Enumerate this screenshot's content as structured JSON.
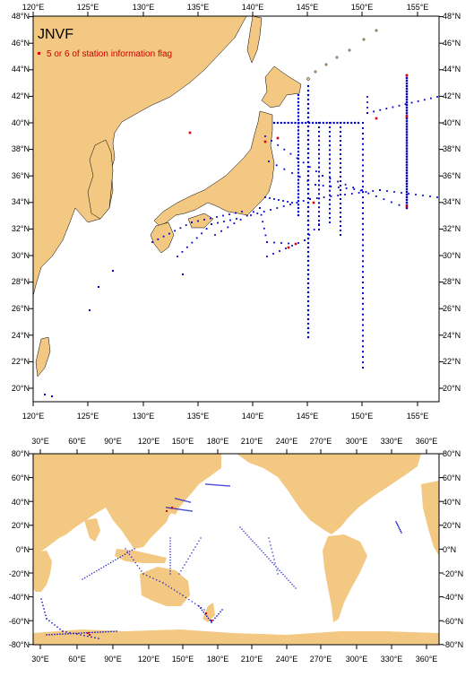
{
  "colors": {
    "land": "#f2c882",
    "ocean": "#ffffff",
    "blue_dots": "#0000cc",
    "red_dots": "#dd0000",
    "frame": "#000000"
  },
  "top_map": {
    "title": "JNVF",
    "legend_label": "5 or 6 of station information flag",
    "lon_labels": [
      "120°E",
      "125°E",
      "130°E",
      "135°E",
      "140°E",
      "145°E",
      "150°E",
      "155°E"
    ],
    "lat_labels": [
      "20°N",
      "22°N",
      "24°N",
      "26°N",
      "28°N",
      "30°N",
      "32°N",
      "34°N",
      "36°N",
      "38°N",
      "40°N",
      "42°N",
      "44°N",
      "46°N",
      "48°N"
    ],
    "lon_range": [
      120,
      157
    ],
    "lat_range": [
      19,
      48
    ]
  },
  "bottom_map": {
    "lon_labels": [
      "30°E",
      "60°E",
      "90°E",
      "120°E",
      "150°E",
      "180°E",
      "210°E",
      "240°E",
      "270°E",
      "300°E",
      "330°E",
      "360°E"
    ],
    "lat_labels": [
      "80°N",
      "60°N",
      "40°N",
      "20°N",
      "0°N",
      "-20°N",
      "-40°N",
      "-60°N",
      "-80°N"
    ],
    "lon_range": [
      20,
      375
    ],
    "lat_range": [
      -80,
      80
    ]
  }
}
